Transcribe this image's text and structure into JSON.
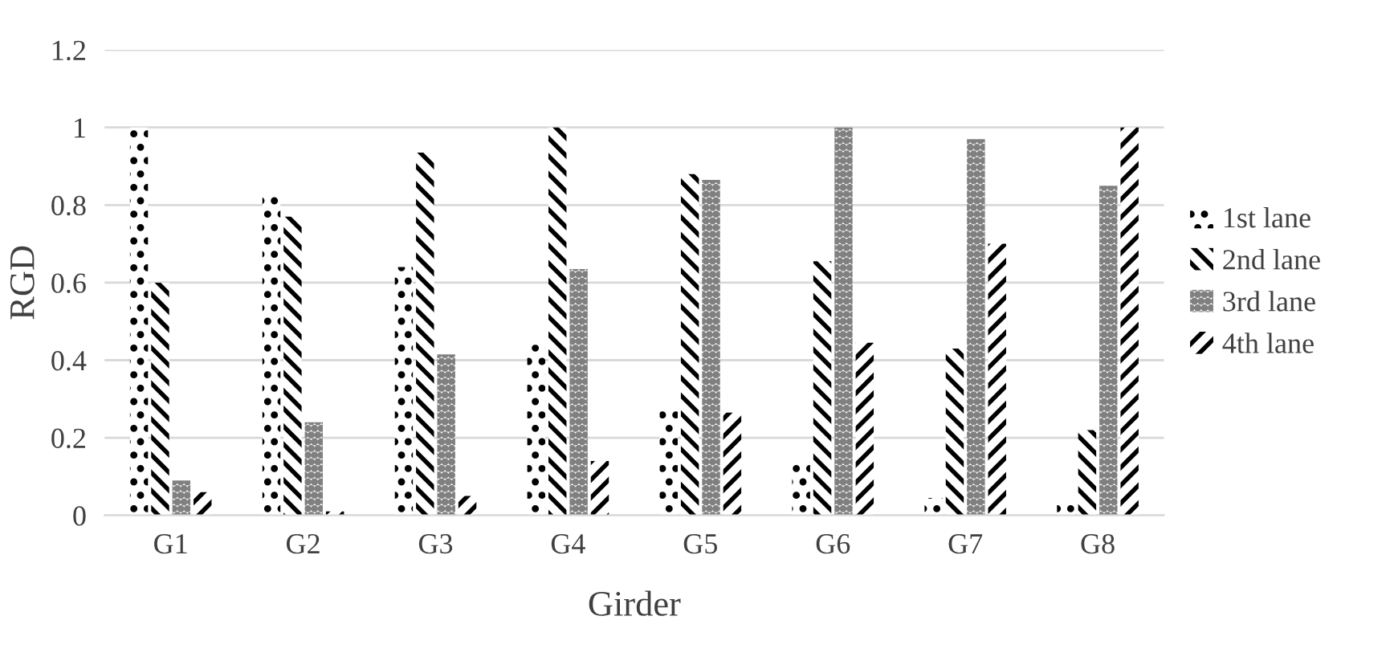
{
  "chart_data": {
    "type": "bar",
    "xlabel": "Girder",
    "ylabel": "RGD",
    "categories": [
      "G1",
      "G2",
      "G3",
      "G4",
      "G5",
      "G6",
      "G7",
      "G8"
    ],
    "series": [
      {
        "name": "1st lane",
        "color": "#000000",
        "values": [
          1.0,
          0.835,
          0.64,
          0.44,
          0.27,
          0.14,
          0.045,
          0.035
        ]
      },
      {
        "name": "2nd lane",
        "color": "#000000",
        "values": [
          0.6,
          0.77,
          0.935,
          1.0,
          0.88,
          0.655,
          0.43,
          0.22
        ]
      },
      {
        "name": "3rd lane",
        "color": "#808080",
        "values": [
          0.09,
          0.24,
          0.415,
          0.635,
          0.865,
          1.0,
          0.97,
          0.85
        ]
      },
      {
        "name": "4th lane",
        "color": "#000000",
        "values": [
          0.06,
          0.01,
          0.05,
          0.14,
          0.265,
          0.445,
          0.7,
          1.0
        ]
      }
    ],
    "ylim": [
      0,
      1.2
    ],
    "yticks": [
      0,
      0.2,
      0.4,
      0.6,
      0.8,
      1,
      1.2
    ],
    "grid": "y",
    "legend": "right"
  }
}
